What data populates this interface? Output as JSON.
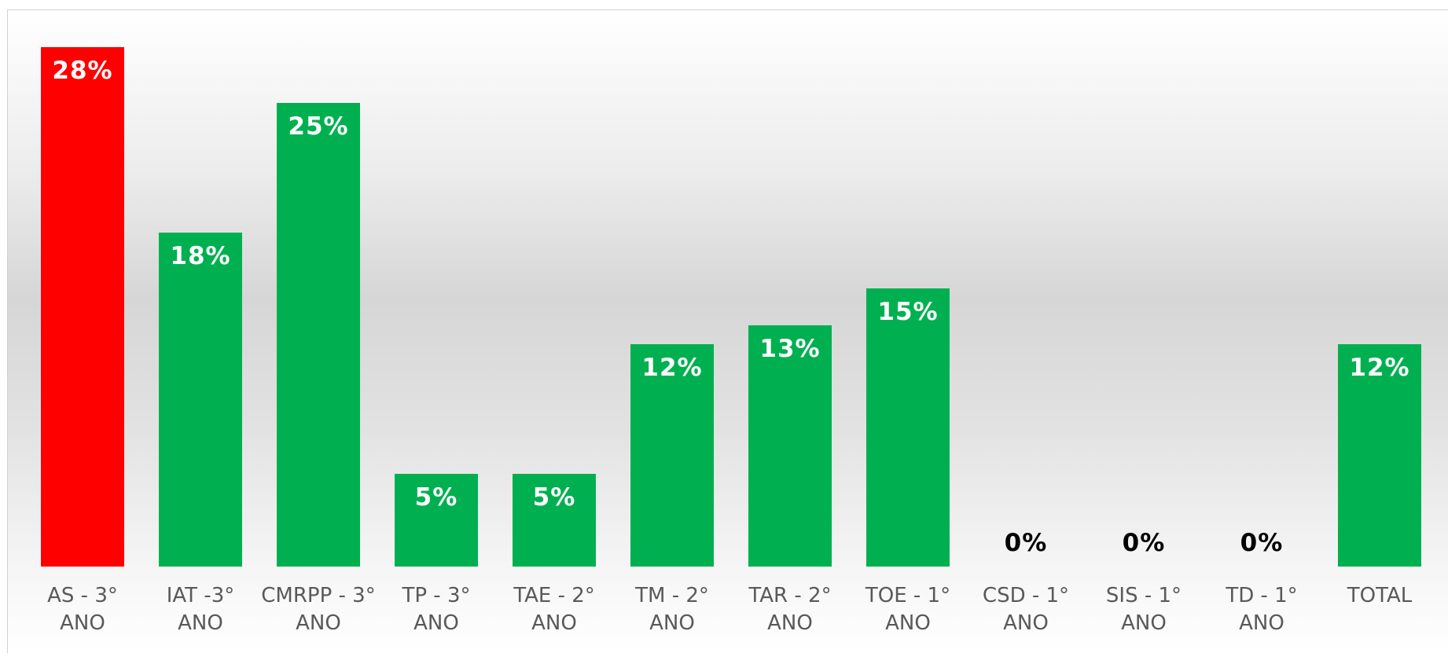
{
  "chart_data": {
    "type": "bar",
    "categories": [
      "AS - 3° ANO",
      "IAT -3° ANO",
      "CMRPP - 3° ANO",
      "TP - 3° ANO",
      "TAE - 2° ANO",
      "TM - 2° ANO",
      "TAR - 2° ANO",
      "TOE - 1° ANO",
      "CSD - 1° ANO",
      "SIS - 1° ANO",
      "TD - 1° ANO",
      "TOTAL"
    ],
    "values": [
      28,
      18,
      25,
      5,
      5,
      12,
      13,
      15,
      0,
      0,
      0,
      12
    ],
    "value_labels": [
      "28%",
      "18%",
      "25%",
      "5%",
      "5%",
      "12%",
      "13%",
      "15%",
      "0%",
      "0%",
      "0%",
      "12%"
    ],
    "colors": [
      "#ff0000",
      "#00b050",
      "#00b050",
      "#00b050",
      "#00b050",
      "#00b050",
      "#00b050",
      "#00b050",
      "#00b050",
      "#00b050",
      "#00b050",
      "#00b050"
    ],
    "ylim": [
      0,
      28
    ]
  }
}
